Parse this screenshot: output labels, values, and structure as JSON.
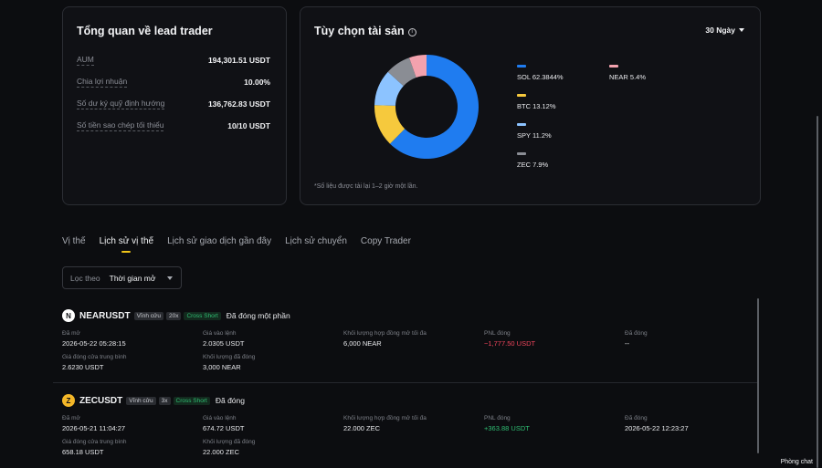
{
  "overview": {
    "title": "Tổng quan về lead trader",
    "rows": [
      {
        "label": "AUM",
        "value": "194,301.51 USDT"
      },
      {
        "label": "Chia lợi nhuận",
        "value": "10.00%"
      },
      {
        "label": "Số dư ký quỹ định hướng",
        "value": "136,762.83 USDT"
      },
      {
        "label": "Số tiền sao chép tối thiểu",
        "value": "10/10 USDT"
      }
    ]
  },
  "assets": {
    "title": "Tùy chọn tài sản",
    "period": "30 Ngày",
    "note": "*Số liệu được tải lại 1–2 giờ một lần.",
    "legend": [
      {
        "label": "SOL 62.3844%",
        "color": "#1f7cf0"
      },
      {
        "label": "BTC 13.12%",
        "color": "#f6c93d"
      },
      {
        "label": "SPY 11.2%",
        "color": "#8cc3ff"
      },
      {
        "label": "ZEC 7.9%",
        "color": "#8a8d94"
      },
      {
        "label": "NEAR 5.4%",
        "color": "#f3a2ae"
      }
    ]
  },
  "chart_data": {
    "type": "pie",
    "categories": [
      "SOL",
      "BTC",
      "SPY",
      "ZEC",
      "NEAR"
    ],
    "values": [
      62.3844,
      13.12,
      11.2,
      7.9,
      5.4
    ],
    "colors": [
      "#1f7cf0",
      "#f6c93d",
      "#8cc3ff",
      "#8a8d94",
      "#f3a2ae"
    ],
    "donut": true,
    "legend": "right"
  },
  "tabs": [
    "Vị thế",
    "Lịch sử vị thế",
    "Lịch sử giao dịch gần đây",
    "Lịch sử chuyển",
    "Copy Trader"
  ],
  "filter": {
    "label": "Lọc theo",
    "value": "Thời gian mở"
  },
  "positions": [
    {
      "icon": "N",
      "symbol": "NEARUSDT",
      "tags": [
        "Vĩnh cửu",
        "20x",
        "Cross Short"
      ],
      "status": "Đã đóng một phần",
      "opened_label": "Đã mở",
      "opened": "2026-05-22 05:28:15",
      "entry_label": "Giá vào lệnh",
      "entry": "2.0305 USDT",
      "maxvol_label": "Khối lượng hợp đồng mở tối đa",
      "maxvol": "6,000 NEAR",
      "pnl_label": "PNL đóng",
      "pnl": "−1,777.50 USDT",
      "closed_label": "Đã đóng",
      "closed": "--",
      "avgclose_label": "Giá đóng cửa trung bình",
      "avgclose": "2.6230 USDT",
      "closedvol_label": "Khối lượng đã đóng",
      "closedvol": "3,000 NEAR"
    },
    {
      "icon": "Z",
      "symbol": "ZECUSDT",
      "tags": [
        "Vĩnh cửu",
        "3x",
        "Cross Short"
      ],
      "status": "Đã đóng",
      "opened_label": "Đã mở",
      "opened": "2026-05-21 11:04:27",
      "entry_label": "Giá vào lệnh",
      "entry": "674.72 USDT",
      "maxvol_label": "Khối lượng hợp đồng mở tối đa",
      "maxvol": "22.000 ZEC",
      "pnl_label": "PNL đóng",
      "pnl": "+363.88 USDT",
      "closed_label": "Đã đóng",
      "closed": "2026-05-22 12:23:27",
      "avgclose_label": "Giá đóng cửa trung bình",
      "avgclose": "658.18 USDT",
      "closedvol_label": "Khối lượng đã đóng",
      "closedvol": "22.000 ZEC"
    }
  ],
  "chat": "Phòng chat"
}
